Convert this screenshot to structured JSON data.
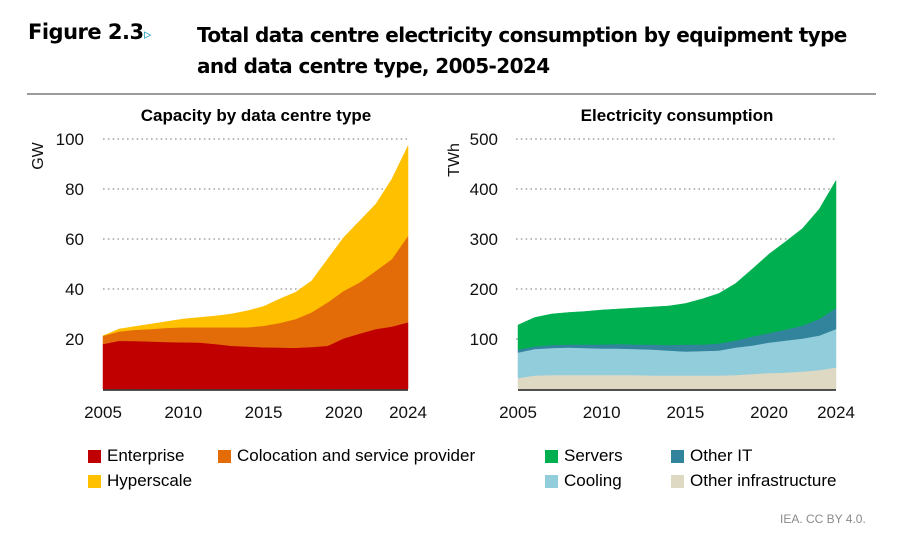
{
  "figure": {
    "label": "Figure 2.3",
    "arrow_icon": "▹",
    "title_line1": "Total data centre electricity consumption by equipment type",
    "title_line2": "and data centre type, 2005-2024",
    "credit": "IEA. CC BY 4.0."
  },
  "chart_data": [
    {
      "type": "area",
      "stacked": true,
      "title": "Capacity by data centre type",
      "ylabel": "GW",
      "xlabel": "",
      "ylim": [
        0,
        100
      ],
      "yticks": [
        20,
        40,
        60,
        80,
        100
      ],
      "xticks": [
        2005,
        2010,
        2015,
        2020,
        2024
      ],
      "grid": "horizontal dotted",
      "x": [
        2005,
        2006,
        2007,
        2008,
        2009,
        2010,
        2011,
        2012,
        2013,
        2014,
        2015,
        2016,
        2017,
        2018,
        2019,
        2020,
        2021,
        2022,
        2023,
        2024
      ],
      "series": [
        {
          "name": "Enterprise",
          "color": "#c00000",
          "values": [
            18,
            19.3,
            19.2,
            19,
            18.8,
            18.7,
            18.6,
            18,
            17.3,
            17,
            16.7,
            16.6,
            16.5,
            16.8,
            17.3,
            20.3,
            22.2,
            24,
            25,
            26.7
          ]
        },
        {
          "name": "Colocation and service provider",
          "color": "#e36c09",
          "values": [
            3.3,
            3.7,
            4.5,
            5,
            5.7,
            6,
            6.1,
            6.7,
            7.4,
            7.7,
            8.6,
            9.8,
            11.5,
            13.9,
            17.4,
            19,
            20.5,
            23.3,
            27,
            34.6
          ]
        },
        {
          "name": "Hyperscale",
          "color": "#ffc000",
          "values": [
            0,
            1,
            1.3,
            2,
            2.5,
            3.3,
            3.9,
            4.5,
            5.3,
            6.6,
            7.7,
            9.6,
            10.7,
            12.6,
            17.3,
            21.4,
            24.6,
            26.7,
            32,
            36
          ]
        }
      ],
      "legend": "bottom"
    },
    {
      "type": "area",
      "stacked": true,
      "title": "Electricity consumption",
      "ylabel": "TWh",
      "xlabel": "",
      "ylim": [
        0,
        500
      ],
      "yticks": [
        100,
        200,
        300,
        400,
        500
      ],
      "xticks": [
        2005,
        2010,
        2015,
        2020,
        2024
      ],
      "grid": "horizontal dotted",
      "x": [
        2005,
        2006,
        2007,
        2008,
        2009,
        2010,
        2011,
        2012,
        2013,
        2014,
        2015,
        2016,
        2017,
        2018,
        2019,
        2020,
        2021,
        2022,
        2023,
        2024
      ],
      "series": [
        {
          "name": "Other infrastructure",
          "color": "#ddd9c3",
          "values": [
            22,
            27,
            28,
            28,
            28,
            28,
            28,
            28,
            27,
            27,
            27,
            27,
            27,
            28,
            30,
            32,
            33,
            35,
            38,
            43
          ]
        },
        {
          "name": "Cooling",
          "color": "#92cddc",
          "values": [
            51,
            53,
            54,
            55,
            54,
            53,
            53,
            52,
            52,
            50,
            48,
            49,
            50,
            55,
            57,
            61,
            64,
            66,
            69,
            77
          ]
        },
        {
          "name": "Other IT",
          "color": "#31849b",
          "values": [
            6,
            5,
            6,
            6,
            7,
            8,
            9,
            9,
            10,
            11,
            14,
            13,
            14,
            14,
            18,
            19,
            22,
            26,
            33,
            42
          ]
        },
        {
          "name": "Servers",
          "color": "#00b050",
          "values": [
            49,
            58,
            62,
            64,
            66,
            69,
            70,
            73,
            75,
            78,
            82,
            91,
            100,
            114,
            135,
            158,
            176,
            194,
            220,
            255
          ]
        }
      ],
      "legend": "bottom"
    }
  ],
  "legend_left": [
    {
      "label": "Enterprise",
      "color": "#c00000"
    },
    {
      "label": "Colocation and service provider",
      "color": "#e36c09"
    },
    {
      "label": "Hyperscale",
      "color": "#ffc000"
    }
  ],
  "legend_right": [
    {
      "label": "Servers",
      "color": "#00b050"
    },
    {
      "label": "Other IT",
      "color": "#31849b"
    },
    {
      "label": "Cooling",
      "color": "#92cddc"
    },
    {
      "label": "Other infrastructure",
      "color": "#ddd9c3"
    }
  ]
}
